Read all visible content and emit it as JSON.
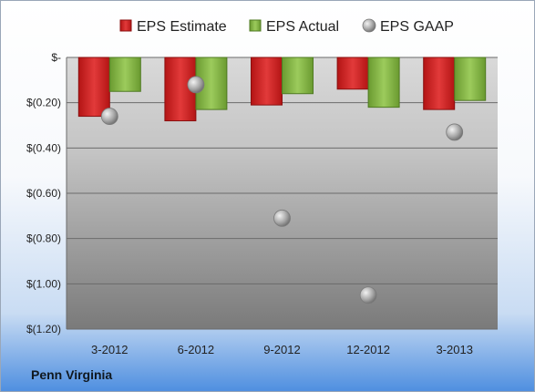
{
  "company": "Penn Virginia",
  "chart_data": {
    "type": "bar",
    "title": "",
    "xlabel": "",
    "ylabel": "",
    "categories": [
      "3-2012",
      "6-2012",
      "9-2012",
      "12-2012",
      "3-2013"
    ],
    "series": [
      {
        "name": "EPS Estimate",
        "kind": "bar",
        "color": "#cc1f1f",
        "values": [
          -0.26,
          -0.28,
          -0.21,
          -0.14,
          -0.23
        ]
      },
      {
        "name": "EPS Actual",
        "kind": "bar",
        "color": "#7aab3c",
        "values": [
          -0.15,
          -0.23,
          -0.16,
          -0.22,
          -0.19
        ]
      },
      {
        "name": "EPS GAAP",
        "kind": "point",
        "color": "#a6a6a6",
        "values": [
          -0.26,
          -0.12,
          -0.71,
          -1.05,
          -0.33
        ]
      }
    ],
    "ylim": [
      -1.2,
      0
    ],
    "yticks": [
      0,
      -0.2,
      -0.4,
      -0.6,
      -0.8,
      -1.0,
      -1.2
    ],
    "ytick_labels": [
      "$-",
      "$(0.20)",
      "$(0.40)",
      "$(0.60)",
      "$(0.80)",
      "$(1.00)",
      "$(1.20)"
    ],
    "grid": true,
    "legend": "top"
  }
}
